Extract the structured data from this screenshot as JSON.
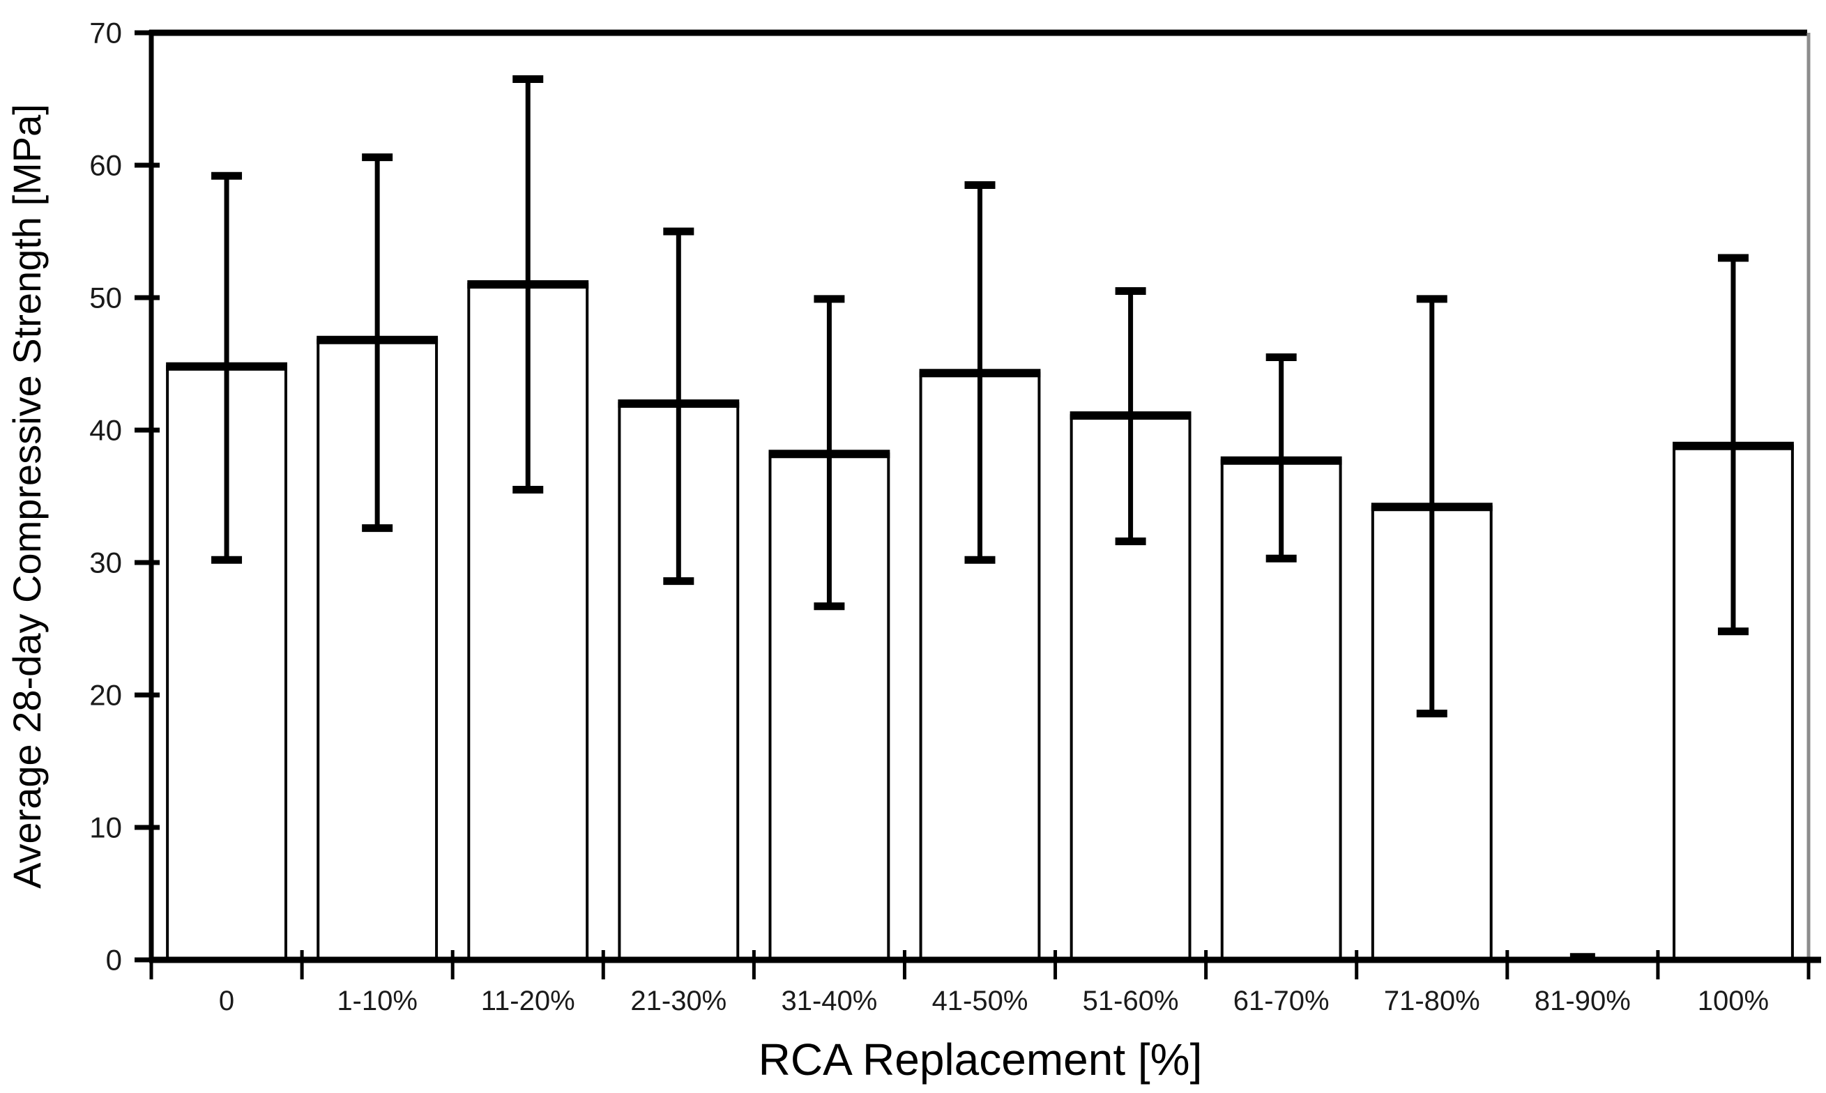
{
  "chart_data": {
    "type": "bar",
    "title": "",
    "xlabel": "RCA Replacement [%]",
    "ylabel": "Average 28-day Compressive Strength [MPa]",
    "categories": [
      "0",
      "1-10%",
      "11-20%",
      "21-30%",
      "31-40%",
      "41-50%",
      "51-60%",
      "61-70%",
      "71-80%",
      "81-90%",
      "100%"
    ],
    "values": [
      44.8,
      46.8,
      51.0,
      42.0,
      38.2,
      44.3,
      41.1,
      37.7,
      34.2,
      0.2,
      38.8
    ],
    "error_high": [
      59.2,
      60.6,
      66.5,
      55.0,
      49.9,
      58.5,
      50.5,
      45.5,
      49.9,
      null,
      53.0
    ],
    "error_low": [
      30.2,
      32.6,
      35.5,
      28.6,
      26.7,
      30.2,
      31.6,
      30.3,
      18.6,
      null,
      24.8
    ],
    "ylim": [
      0,
      70
    ],
    "yticks": [
      0,
      10,
      20,
      30,
      40,
      50,
      60,
      70
    ],
    "grid": "off",
    "legend": "none",
    "colors": {
      "bar_fill": "#ffffff",
      "bar_border": "#000000",
      "axis": "#000000",
      "frame_right": "#8c8c8c",
      "error_bar": "#000000",
      "tick_label": "#1a1a1a",
      "background": "#ffffff"
    }
  }
}
